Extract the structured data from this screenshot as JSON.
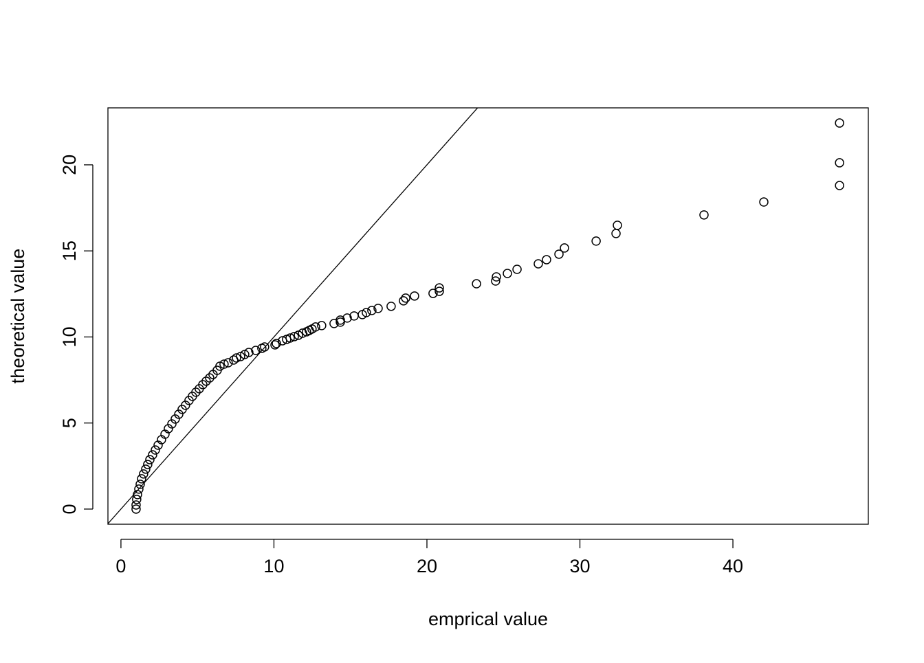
{
  "chart_data": {
    "type": "scatter",
    "x_label": "emprical value",
    "y_label": "theoretical value",
    "xlim": [
      -0.85,
      48.85
    ],
    "ylim": [
      -0.88,
      23.31
    ],
    "xticks": [
      0,
      10,
      20,
      30,
      40
    ],
    "yticks": [
      0,
      5,
      10,
      15,
      20
    ],
    "color": "#000000",
    "abline": {
      "intercept": 0,
      "slope": 1
    },
    "x": [
      46.97,
      46.97,
      46.97,
      42.02,
      38.11,
      32.45,
      32.36,
      31.06,
      28.99,
      28.63,
      27.82,
      27.28,
      25.89,
      25.26,
      24.54,
      24.49,
      23.24,
      20.81,
      20.81,
      20.4,
      19.19,
      18.61,
      18.47,
      17.66,
      16.81,
      16.4,
      16.04,
      15.78,
      15.24,
      14.79,
      14.34,
      14.34,
      13.93,
      13.12,
      12.72,
      12.49,
      12.31,
      12.13,
      11.87,
      11.6,
      11.33,
      11.06,
      10.83,
      10.56,
      10.16,
      10.07,
      9.39,
      9.21,
      8.81,
      8.36,
      8.09,
      7.82,
      7.55,
      7.37,
      7.01,
      6.74,
      6.47,
      6.29,
      6.02,
      5.8,
      5.57,
      5.35,
      5.12,
      4.9,
      4.67,
      4.45,
      4.22,
      4.0,
      3.78,
      3.55,
      3.33,
      3.1,
      2.88,
      2.65,
      2.43,
      2.25,
      2.07,
      1.89,
      1.75,
      1.62,
      1.48,
      1.35,
      1.26,
      1.17,
      1.08,
      1.03,
      0.99,
      0.99
    ],
    "values": [
      22.43,
      20.12,
      18.8,
      17.84,
      17.09,
      16.49,
      16.01,
      15.57,
      15.17,
      14.81,
      14.49,
      14.25,
      13.93,
      13.69,
      13.49,
      13.25,
      13.09,
      12.85,
      12.65,
      12.53,
      12.38,
      12.26,
      12.1,
      11.78,
      11.66,
      11.54,
      11.42,
      11.3,
      11.22,
      11.1,
      10.98,
      10.86,
      10.78,
      10.66,
      10.58,
      10.46,
      10.38,
      10.3,
      10.22,
      10.1,
      10.02,
      9.94,
      9.86,
      9.78,
      9.62,
      9.54,
      9.42,
      9.34,
      9.22,
      9.1,
      8.98,
      8.86,
      8.78,
      8.66,
      8.5,
      8.42,
      8.3,
      8.06,
      7.82,
      7.62,
      7.43,
      7.23,
      6.99,
      6.79,
      6.55,
      6.31,
      6.03,
      5.79,
      5.51,
      5.23,
      4.95,
      4.67,
      4.35,
      4.03,
      3.71,
      3.43,
      3.15,
      2.87,
      2.59,
      2.32,
      2.04,
      1.76,
      1.44,
      1.16,
      0.84,
      0.56,
      0.24,
      0
    ]
  }
}
